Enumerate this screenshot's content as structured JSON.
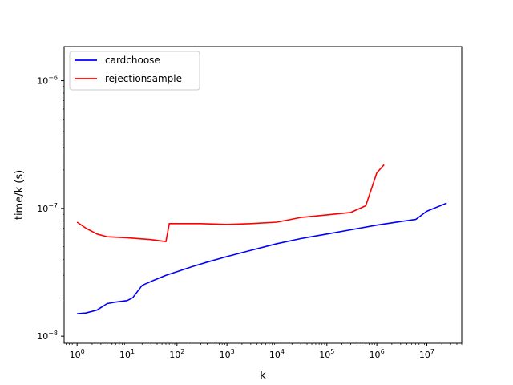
{
  "chart_data": {
    "type": "line",
    "title": "",
    "xlabel": "k",
    "ylabel": "time/k (s)",
    "xscale": "log",
    "yscale": "log",
    "xlim": [
      0.55,
      50000000
    ],
    "ylim": [
      8.8e-09,
      1.85e-06
    ],
    "grid": false,
    "legend_position": "top-left",
    "x_ticks": [
      {
        "value": 1,
        "base": "10",
        "exp": "0"
      },
      {
        "value": 10,
        "base": "10",
        "exp": "1"
      },
      {
        "value": 100,
        "base": "10",
        "exp": "2"
      },
      {
        "value": 1000,
        "base": "10",
        "exp": "3"
      },
      {
        "value": 10000,
        "base": "10",
        "exp": "4"
      },
      {
        "value": 100000,
        "base": "10",
        "exp": "5"
      },
      {
        "value": 1000000,
        "base": "10",
        "exp": "6"
      },
      {
        "value": 10000000,
        "base": "10",
        "exp": "7"
      }
    ],
    "y_ticks": [
      {
        "value": 1e-08,
        "base": "10",
        "exp": "−8"
      },
      {
        "value": 1e-07,
        "base": "10",
        "exp": "−7"
      },
      {
        "value": 1e-06,
        "base": "10",
        "exp": "−6"
      }
    ],
    "series": [
      {
        "name": "cardchoose",
        "color": "#0000ff",
        "x": [
          1,
          1.5,
          2.5,
          4,
          6,
          10,
          13,
          20,
          35,
          60,
          100,
          200,
          400,
          1000,
          3000,
          10000,
          30000,
          100000,
          300000,
          1000000,
          3000000,
          6000000,
          10000000,
          25000000
        ],
        "y": [
          1.5e-08,
          1.52e-08,
          1.6e-08,
          1.8e-08,
          1.85e-08,
          1.9e-08,
          2e-08,
          2.5e-08,
          2.75e-08,
          3e-08,
          3.2e-08,
          3.5e-08,
          3.8e-08,
          4.2e-08,
          4.7e-08,
          5.3e-08,
          5.8e-08,
          6.3e-08,
          6.8e-08,
          7.4e-08,
          7.9e-08,
          8.2e-08,
          9.5e-08,
          1.1e-07
        ]
      },
      {
        "name": "rejectionsample",
        "color": "#ff0000",
        "x": [
          1,
          1.5,
          2.5,
          4,
          10,
          30,
          60,
          70,
          100,
          300,
          1000,
          3000,
          10000,
          30000,
          100000,
          300000,
          600000,
          1000000,
          1400000
        ],
        "y": [
          7.8e-08,
          7e-08,
          6.3e-08,
          6e-08,
          5.9e-08,
          5.7e-08,
          5.5e-08,
          7.6e-08,
          7.6e-08,
          7.6e-08,
          7.5e-08,
          7.6e-08,
          7.8e-08,
          8.5e-08,
          8.9e-08,
          9.3e-08,
          1.05e-07,
          1.9e-07,
          2.2e-07
        ]
      }
    ]
  }
}
